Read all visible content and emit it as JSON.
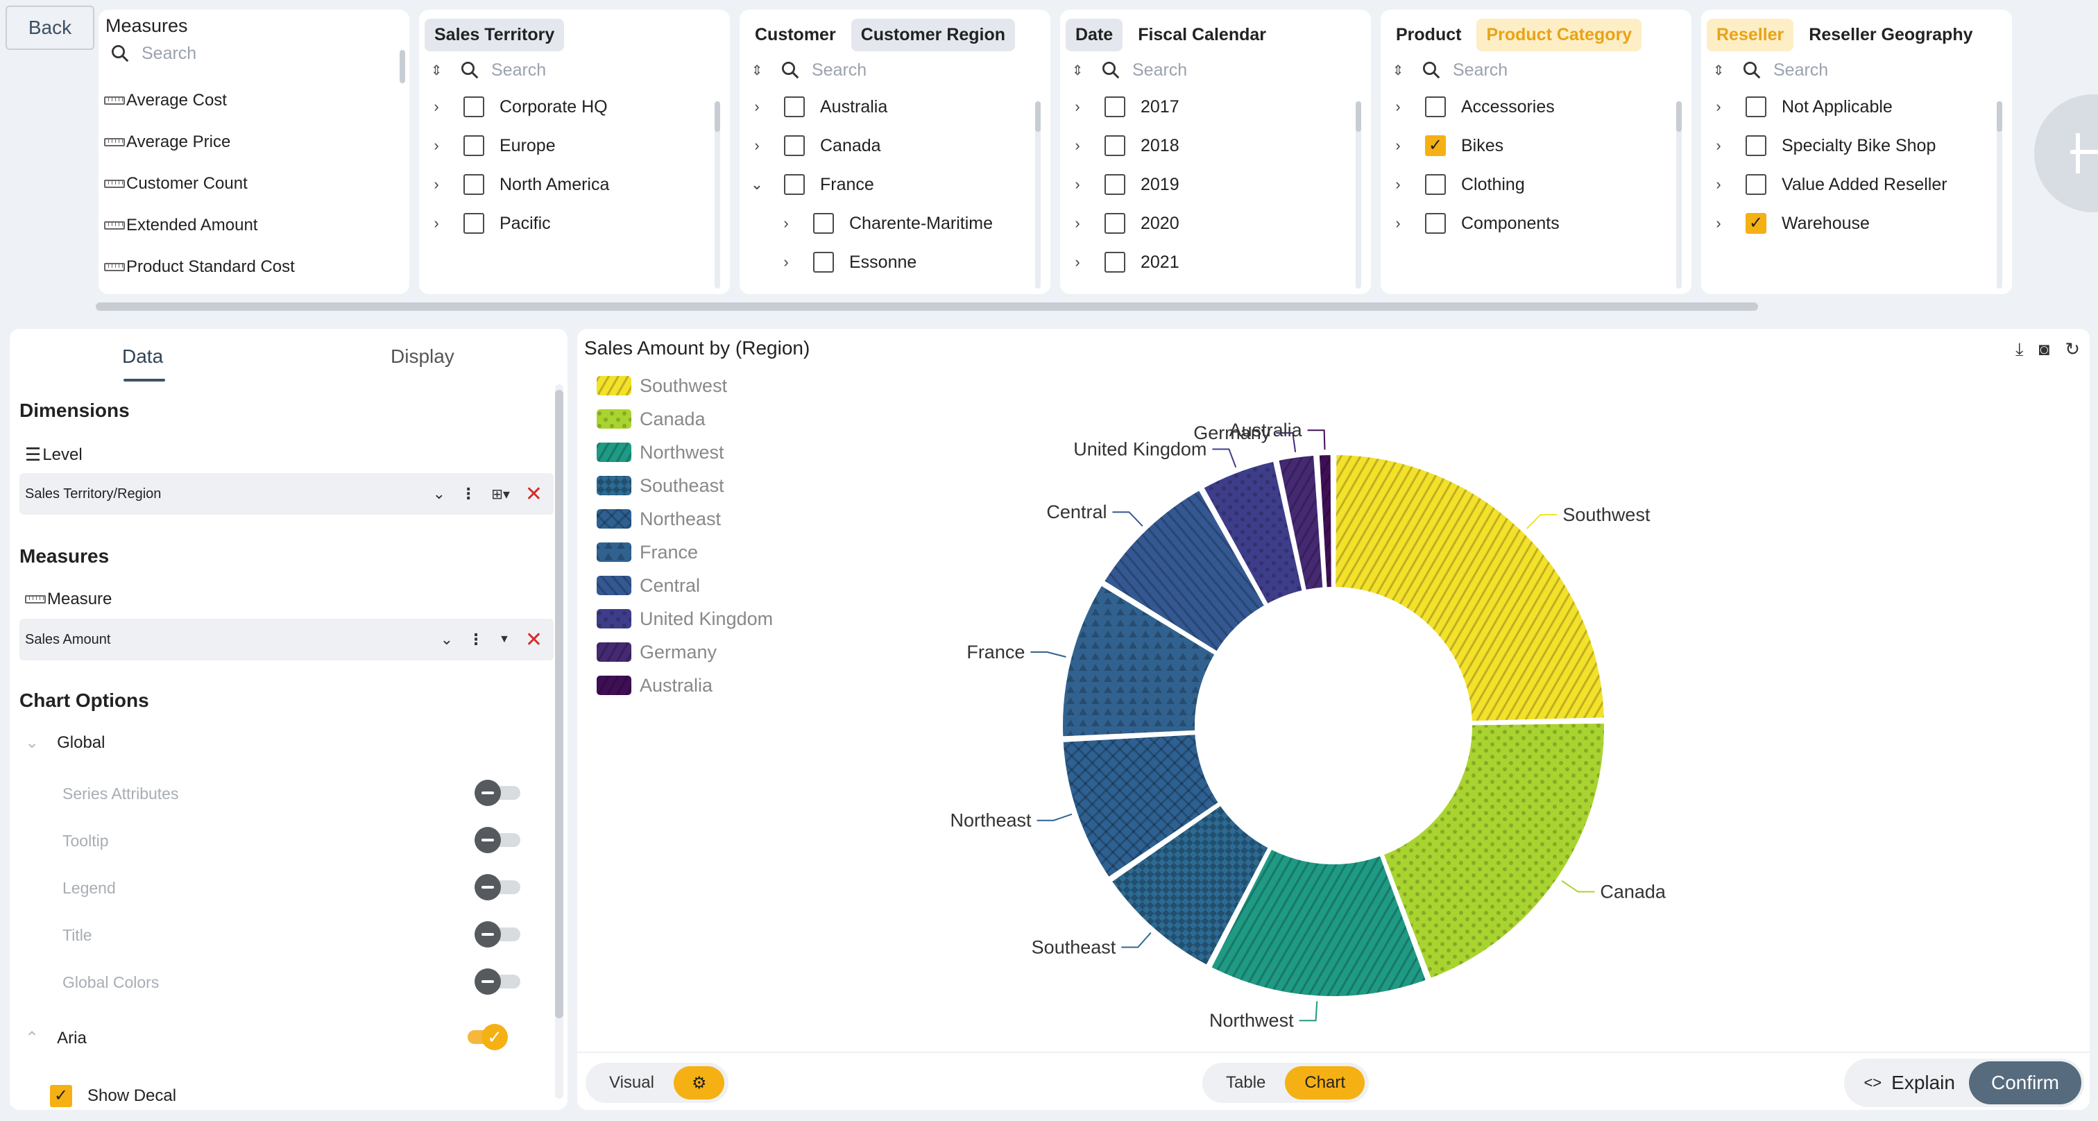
{
  "back_label": "Back",
  "measures": {
    "title": "Measures",
    "search_placeholder": "Search",
    "items": [
      "Average Cost",
      "Average Price",
      "Customer Count",
      "Extended Amount",
      "Product Standard Cost"
    ]
  },
  "filters": [
    {
      "tabs": [
        {
          "label": "Sales Territory",
          "state": "selected"
        }
      ],
      "search_placeholder": "Search",
      "rows": [
        {
          "label": "Corporate HQ",
          "expanded": false,
          "checked": false,
          "level": 0
        },
        {
          "label": "Europe",
          "expanded": false,
          "checked": false,
          "level": 0
        },
        {
          "label": "North America",
          "expanded": false,
          "checked": false,
          "level": 0
        },
        {
          "label": "Pacific",
          "expanded": false,
          "checked": false,
          "level": 0
        }
      ]
    },
    {
      "tabs": [
        {
          "label": "Customer",
          "state": "plain"
        },
        {
          "label": "Customer Region",
          "state": "selected"
        }
      ],
      "search_placeholder": "Search",
      "rows": [
        {
          "label": "Australia",
          "expanded": false,
          "checked": false,
          "level": 0
        },
        {
          "label": "Canada",
          "expanded": false,
          "checked": false,
          "level": 0
        },
        {
          "label": "France",
          "expanded": true,
          "checked": false,
          "level": 0
        },
        {
          "label": "Charente-Maritime",
          "expanded": false,
          "checked": false,
          "level": 1
        },
        {
          "label": "Essonne",
          "expanded": false,
          "checked": false,
          "level": 1
        }
      ]
    },
    {
      "tabs": [
        {
          "label": "Date",
          "state": "selected"
        },
        {
          "label": "Fiscal Calendar",
          "state": "plain"
        }
      ],
      "search_placeholder": "Search",
      "rows": [
        {
          "label": "2017",
          "expanded": false,
          "checked": false,
          "level": 0
        },
        {
          "label": "2018",
          "expanded": false,
          "checked": false,
          "level": 0
        },
        {
          "label": "2019",
          "expanded": false,
          "checked": false,
          "level": 0
        },
        {
          "label": "2020",
          "expanded": false,
          "checked": false,
          "level": 0
        },
        {
          "label": "2021",
          "expanded": false,
          "checked": false,
          "level": 0
        }
      ]
    },
    {
      "tabs": [
        {
          "label": "Product",
          "state": "plain"
        },
        {
          "label": "Product Category",
          "state": "accent"
        }
      ],
      "search_placeholder": "Search",
      "rows": [
        {
          "label": "Accessories",
          "expanded": false,
          "checked": false,
          "level": 0
        },
        {
          "label": "Bikes",
          "expanded": false,
          "checked": true,
          "level": 0
        },
        {
          "label": "Clothing",
          "expanded": false,
          "checked": false,
          "level": 0
        },
        {
          "label": "Components",
          "expanded": false,
          "checked": false,
          "level": 0
        }
      ]
    },
    {
      "tabs": [
        {
          "label": "Reseller",
          "state": "accent"
        },
        {
          "label": "Reseller Geography",
          "state": "plain"
        }
      ],
      "search_placeholder": "Search",
      "rows": [
        {
          "label": "Not Applicable",
          "expanded": false,
          "checked": false,
          "level": 0
        },
        {
          "label": "Specialty Bike Shop",
          "expanded": false,
          "checked": false,
          "level": 0
        },
        {
          "label": "Value Added Reseller",
          "expanded": false,
          "checked": false,
          "level": 0
        },
        {
          "label": "Warehouse",
          "expanded": false,
          "checked": true,
          "level": 0
        }
      ]
    }
  ],
  "config": {
    "tab_data": "Data",
    "tab_display": "Display",
    "dimensions_heading": "Dimensions",
    "level_label": "Level",
    "level_value": "Sales Territory/Region",
    "measures_heading": "Measures",
    "measure_label": "Measure",
    "measure_value": "Sales Amount",
    "chart_options_heading": "Chart Options",
    "global_label": "Global",
    "options": [
      {
        "label": "Series Attributes",
        "on": false
      },
      {
        "label": "Tooltip",
        "on": false
      },
      {
        "label": "Legend",
        "on": false
      },
      {
        "label": "Title",
        "on": false
      },
      {
        "label": "Global Colors",
        "on": false
      }
    ],
    "aria_label": "Aria",
    "aria_on": true,
    "show_decal_label": "Show Decal",
    "show_decal_checked": true
  },
  "chart_title": "Sales Amount by (Region)",
  "bottom": {
    "visual_label": "Visual",
    "table_label": "Table",
    "chart_label": "Chart",
    "explain_label": "Explain",
    "confirm_label": "Confirm"
  },
  "colors": {
    "accent": "#f5b014",
    "confirm": "#566b7d"
  },
  "chart_data": {
    "type": "pie",
    "variant": "donut",
    "title": "Sales Amount by (Region)",
    "legend_position": "top-left",
    "categories": [
      "Southwest",
      "Canada",
      "Northwest",
      "Southeast",
      "Northeast",
      "France",
      "Central",
      "United Kingdom",
      "Germany",
      "Australia"
    ],
    "values": [
      24.7,
      19.6,
      13.3,
      7.8,
      8.8,
      9.6,
      8.1,
      4.7,
      2.4,
      1.0
    ],
    "colors": [
      "#f3e12a",
      "#a9d430",
      "#1f9a84",
      "#2d6a93",
      "#2e6192",
      "#31628f",
      "#345892",
      "#3e3d8a",
      "#452972",
      "#3f0f55"
    ],
    "decals": [
      "diag",
      "dots",
      "diag",
      "checker",
      "cross",
      "triangles",
      "diag2",
      "dots",
      "diag",
      "diag"
    ]
  }
}
